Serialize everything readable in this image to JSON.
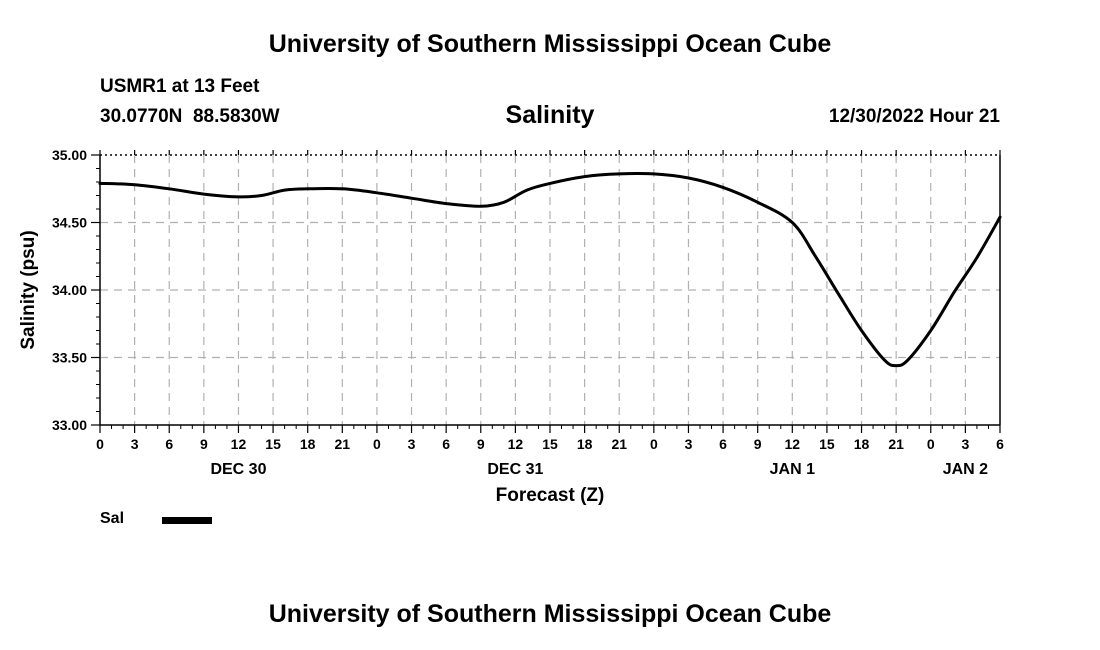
{
  "page": {
    "title_top": "University of Southern Mississippi Ocean Cube",
    "title_bottom": "University of Southern Mississippi Ocean Cube",
    "station": "USMR1 at 13 Feet",
    "coordinates": "30.0770N  88.5830W",
    "chart_title": "Salinity",
    "datetime": "12/30/2022 Hour 21"
  },
  "chart_data": {
    "type": "line",
    "title": "Salinity",
    "xlabel": "Forecast (Z)",
    "ylabel": "Salinity (psu)",
    "ylim": [
      33.0,
      35.0
    ],
    "xlim": [
      0,
      78
    ],
    "x_unit": "hours from 2022-12-30 00Z",
    "grid": true,
    "yticks": [
      "33.00",
      "33.50",
      "34.00",
      "34.50",
      "35.00"
    ],
    "xtick_labels": [
      "0",
      "3",
      "6",
      "9",
      "12",
      "15",
      "18",
      "21",
      "0",
      "3",
      "6",
      "9",
      "12",
      "15",
      "18",
      "21",
      "0",
      "3",
      "6",
      "9",
      "12",
      "15",
      "18",
      "21",
      "0",
      "3",
      "6"
    ],
    "day_labels": [
      {
        "hour": 12,
        "label": "DEC 30"
      },
      {
        "hour": 36,
        "label": "DEC 31"
      },
      {
        "hour": 60,
        "label": "JAN 1"
      },
      {
        "hour": 75,
        "label": "JAN 2"
      }
    ],
    "legend": [
      {
        "name": "Sal",
        "color": "#000000",
        "placement": "bottom-left"
      }
    ],
    "series": [
      {
        "name": "Sal",
        "color": "#000000",
        "x": [
          0,
          3,
          6,
          9,
          12,
          14,
          16,
          18,
          21,
          24,
          27,
          30,
          33,
          35,
          37,
          39,
          42,
          45,
          48,
          51,
          54,
          57,
          60,
          62,
          64,
          66,
          68,
          69,
          70,
          72,
          74,
          76,
          78
        ],
        "y": [
          34.79,
          34.78,
          34.75,
          34.71,
          34.69,
          34.7,
          34.74,
          34.75,
          34.75,
          34.72,
          34.68,
          34.64,
          34.62,
          34.65,
          34.74,
          34.79,
          34.84,
          34.86,
          34.86,
          34.83,
          34.76,
          34.65,
          34.5,
          34.25,
          33.97,
          33.7,
          33.48,
          33.44,
          33.48,
          33.7,
          33.98,
          34.24,
          34.54
        ]
      }
    ]
  }
}
